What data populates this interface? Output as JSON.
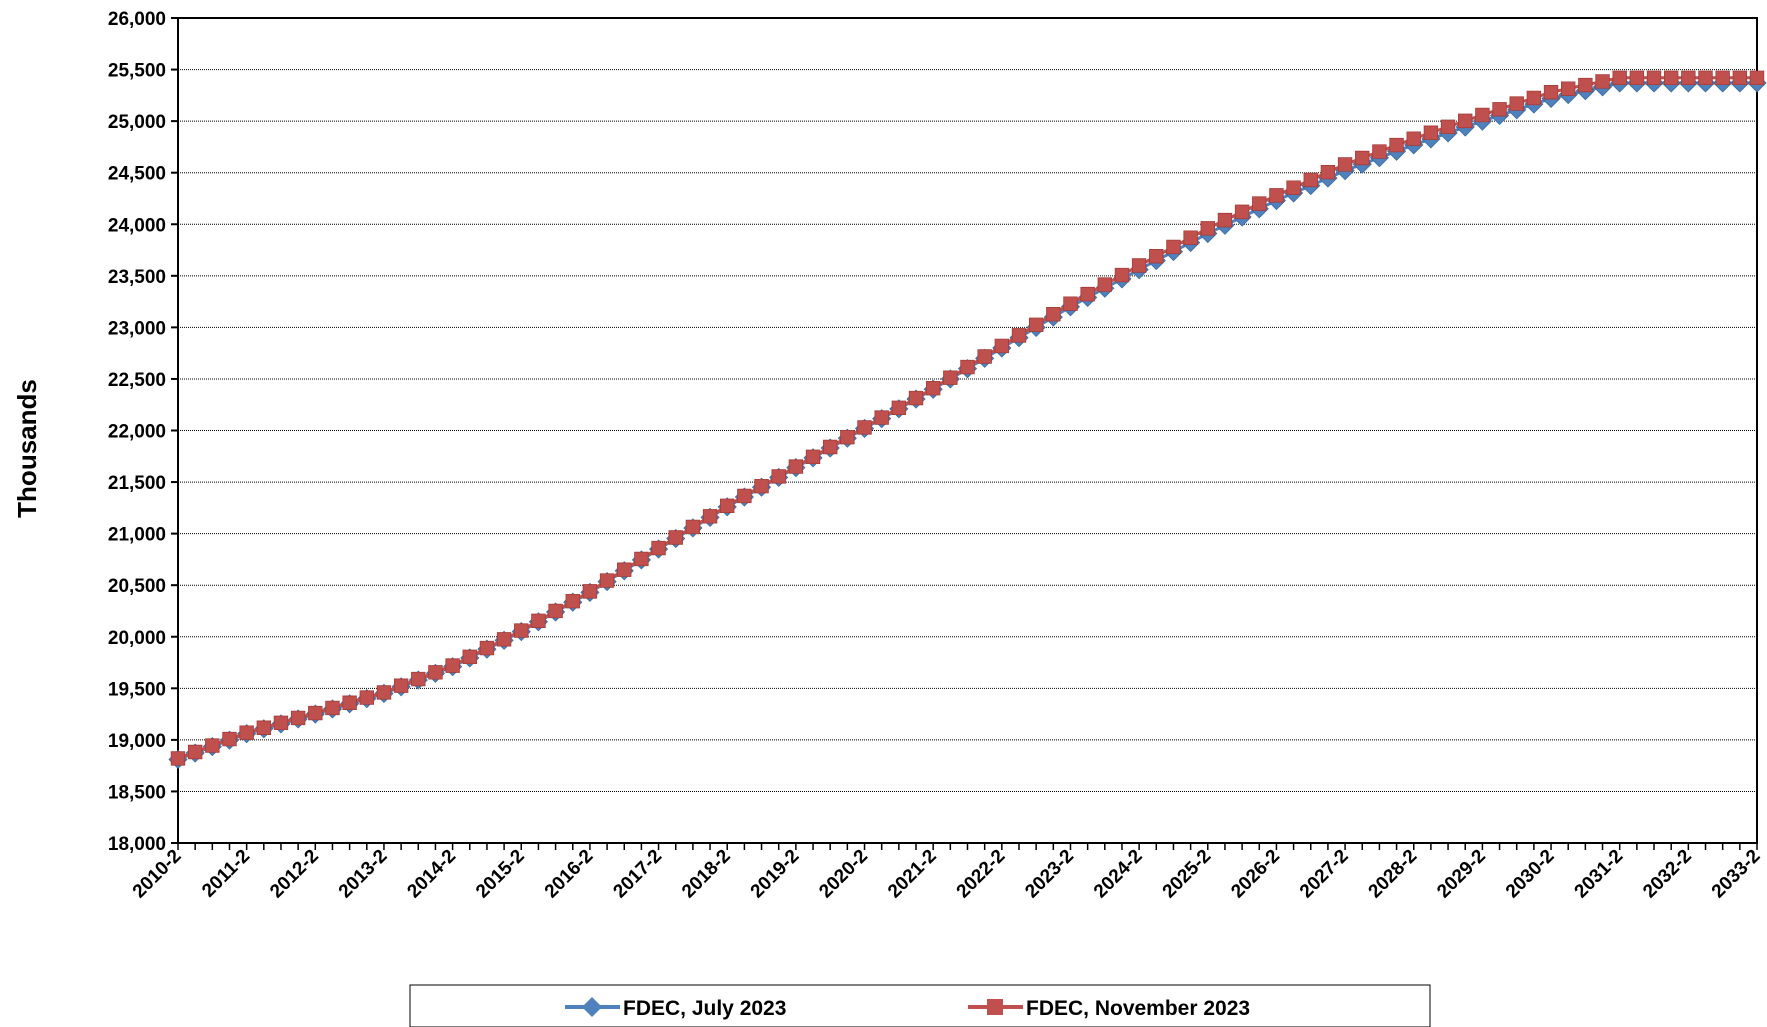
{
  "chart_data": {
    "type": "line",
    "title": "",
    "xlabel": "",
    "ylabel": "Thousands",
    "ylim": [
      18000,
      26000
    ],
    "ytick_step": 500,
    "grid": true,
    "legend_position": "bottom",
    "x_start": "2010-2",
    "quarters": 93,
    "x_tick_labels": [
      "2010-2",
      "2011-2",
      "2012-2",
      "2013-2",
      "2014-2",
      "2015-2",
      "2016-2",
      "2017-2",
      "2018-2",
      "2019-2",
      "2020-2",
      "2021-2",
      "2022-2",
      "2023-2",
      "2024-2",
      "2025-2",
      "2026-2",
      "2027-2",
      "2028-2",
      "2029-2",
      "2030-2",
      "2031-2",
      "2032-2",
      "2033-2"
    ],
    "y_tick_labels": [
      "18,000",
      "18,500",
      "19,000",
      "19,500",
      "20,000",
      "20,500",
      "21,000",
      "21,500",
      "22,000",
      "22,500",
      "23,000",
      "23,500",
      "24,000",
      "24,500",
      "25,000",
      "25,500",
      "26,000"
    ],
    "series": [
      {
        "name": "FDEC, July 2023",
        "color": "#4f81bd",
        "marker": "diamond",
        "annual_values": [
          18810,
          19060,
          19250,
          19450,
          19710,
          20050,
          20430,
          20850,
          21260,
          21640,
          22020,
          22400,
          22800,
          23200,
          23560,
          23910,
          24230,
          24520,
          24770,
          25000,
          25220,
          25370
        ]
      },
      {
        "name": "FDEC, November 2023",
        "color": "#c0504d",
        "marker": "square",
        "annual_values": [
          18820,
          19070,
          19260,
          19460,
          19720,
          20060,
          20440,
          20860,
          21270,
          21650,
          22030,
          22410,
          22820,
          23230,
          23600,
          23960,
          24280,
          24580,
          24830,
          25060,
          25280,
          25420
        ]
      }
    ]
  }
}
